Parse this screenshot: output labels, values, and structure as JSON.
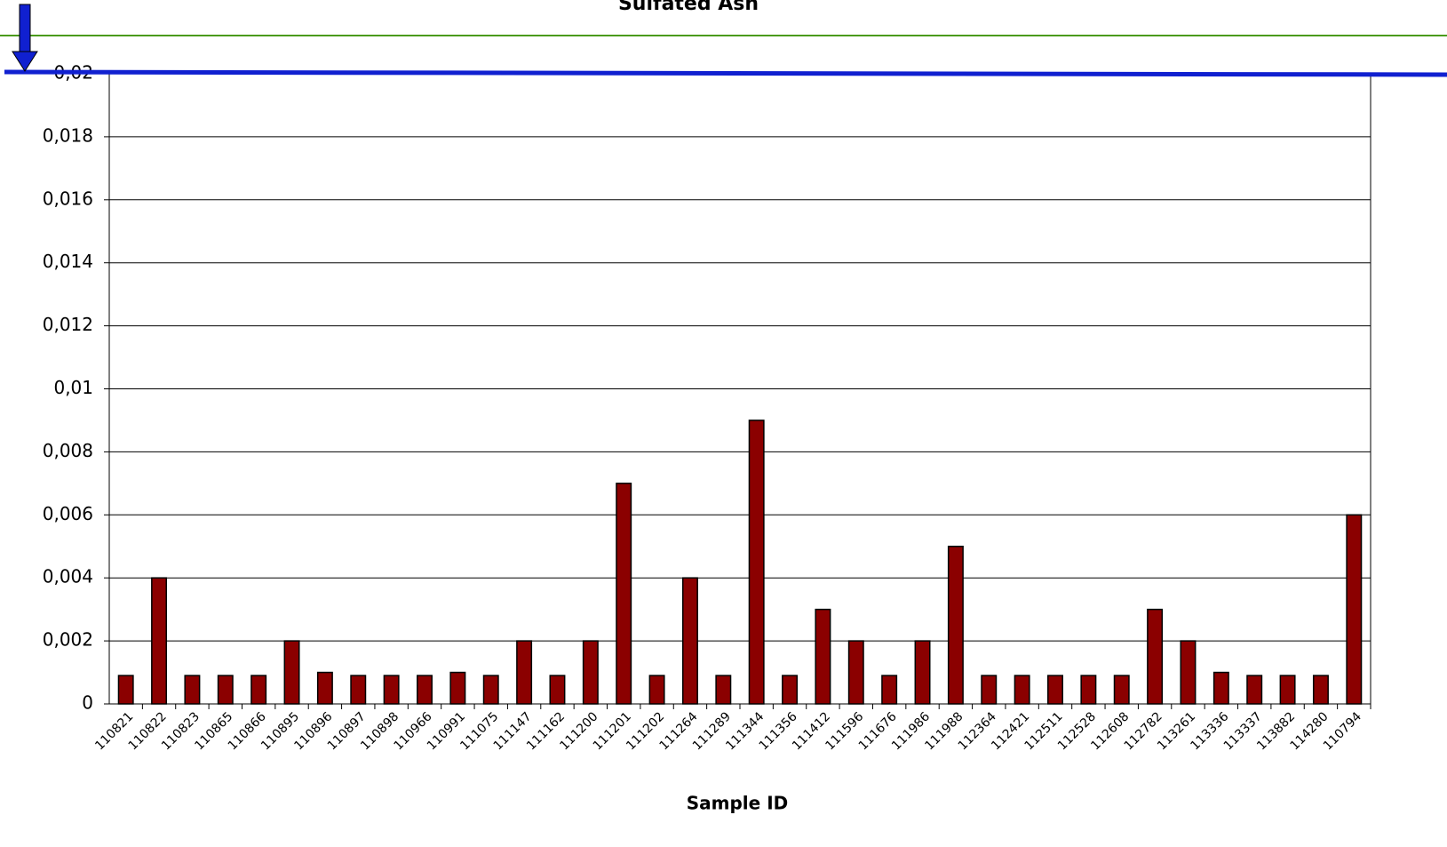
{
  "chart_data": {
    "type": "bar",
    "title": "Sulfated Ash",
    "x_label": "Sample ID",
    "categories": [
      "110821",
      "110822",
      "110823",
      "110865",
      "110866",
      "110895",
      "110896",
      "110897",
      "110898",
      "110966",
      "110991",
      "111075",
      "111147",
      "111162",
      "111200",
      "111201",
      "111202",
      "111264",
      "111289",
      "111344",
      "111356",
      "111412",
      "111596",
      "111676",
      "111986",
      "111988",
      "112364",
      "112421",
      "112511",
      "112528",
      "112608",
      "112782",
      "113261",
      "113336",
      "113337",
      "113882",
      "114280",
      "110794"
    ],
    "values": [
      0.0009,
      0.004,
      0.0009,
      0.0009,
      0.0009,
      0.002,
      0.001,
      0.0009,
      0.0009,
      0.0009,
      0.001,
      0.0009,
      0.002,
      0.0009,
      0.002,
      0.007,
      0.0009,
      0.004,
      0.0009,
      0.009,
      0.0009,
      0.003,
      0.002,
      0.0009,
      0.002,
      0.005,
      0.0009,
      0.0009,
      0.0009,
      0.0009,
      0.0009,
      0.003,
      0.002,
      0.001,
      0.0009,
      0.0009,
      0.0009,
      0.006
    ],
    "color": "#8b0000",
    "ylim": [
      0,
      0.02
    ],
    "yticks": [
      0,
      {
        "value": 0.002,
        "label": "0,002"
      },
      {
        "value": 0.004,
        "label": "0,004"
      },
      {
        "value": 0.006,
        "label": "0,006"
      },
      {
        "value": 0.008,
        "label": "0,008"
      },
      {
        "value": 0.01,
        "label": "0,01"
      },
      {
        "value": 0.012,
        "label": "0,012"
      },
      {
        "value": 0.014,
        "label": "0,014"
      },
      {
        "value": 0.016,
        "label": "0,016"
      },
      {
        "value": 0.018,
        "label": "0,018"
      },
      {
        "value": 0.02,
        "label": "0,02"
      }
    ],
    "grid": true
  }
}
